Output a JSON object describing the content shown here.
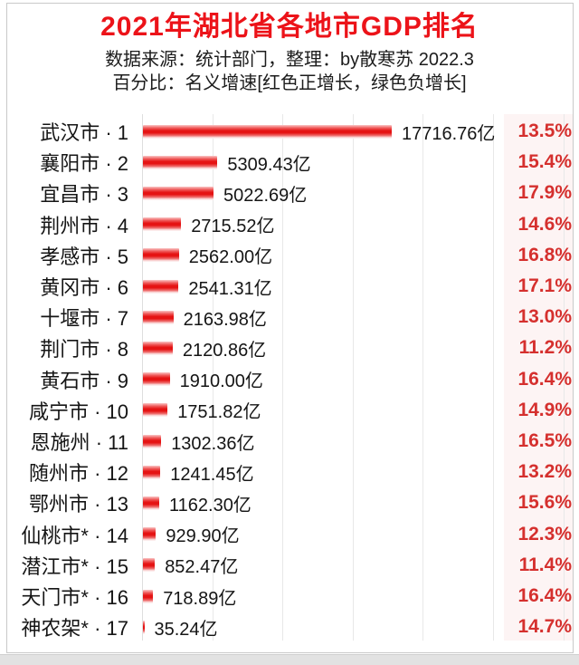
{
  "header": {
    "title": "2021年湖北省各地市GDP排名",
    "subtitle1": "数据来源：统计部门，整理：by散寒苏 2022.3",
    "subtitle2": "百分比：名义增速[红色正增长，绿色负增长]"
  },
  "colors": {
    "title_red": "#ec1319",
    "bar_red": "#e51313",
    "percent_red": "#d5302e",
    "gridline": "#e8e8e8",
    "text_black": "#151515"
  },
  "chart_data": {
    "type": "bar",
    "orientation": "horizontal",
    "title": "2021年湖北省各地市GDP排名",
    "unit": "亿",
    "value_suffix": "亿",
    "percent_meaning": "名义增速",
    "xlim": [
      0,
      30000
    ],
    "grid_interval": 5000,
    "grid_on": true,
    "rank_separator": " · ",
    "categories": [
      "武汉市",
      "襄阳市",
      "宜昌市",
      "荆州市",
      "孝感市",
      "黄冈市",
      "十堰市",
      "荆门市",
      "黄石市",
      "咸宁市",
      "恩施州",
      "随州市",
      "鄂州市",
      "仙桃市*",
      "潜江市*",
      "天门市*",
      "神农架*"
    ],
    "ranks": [
      1,
      2,
      3,
      4,
      5,
      6,
      7,
      8,
      9,
      10,
      11,
      12,
      13,
      14,
      15,
      16,
      17
    ],
    "values": [
      17716.76,
      5309.43,
      5022.69,
      2715.52,
      2562.0,
      2541.31,
      2163.98,
      2120.86,
      1910.0,
      1751.82,
      1302.36,
      1241.45,
      1162.3,
      929.9,
      852.47,
      718.89,
      35.24
    ],
    "growth_pct": [
      13.5,
      15.4,
      17.9,
      14.6,
      16.8,
      17.1,
      13.0,
      11.2,
      16.4,
      14.9,
      16.5,
      13.2,
      15.6,
      12.3,
      11.4,
      16.4,
      14.7
    ]
  }
}
